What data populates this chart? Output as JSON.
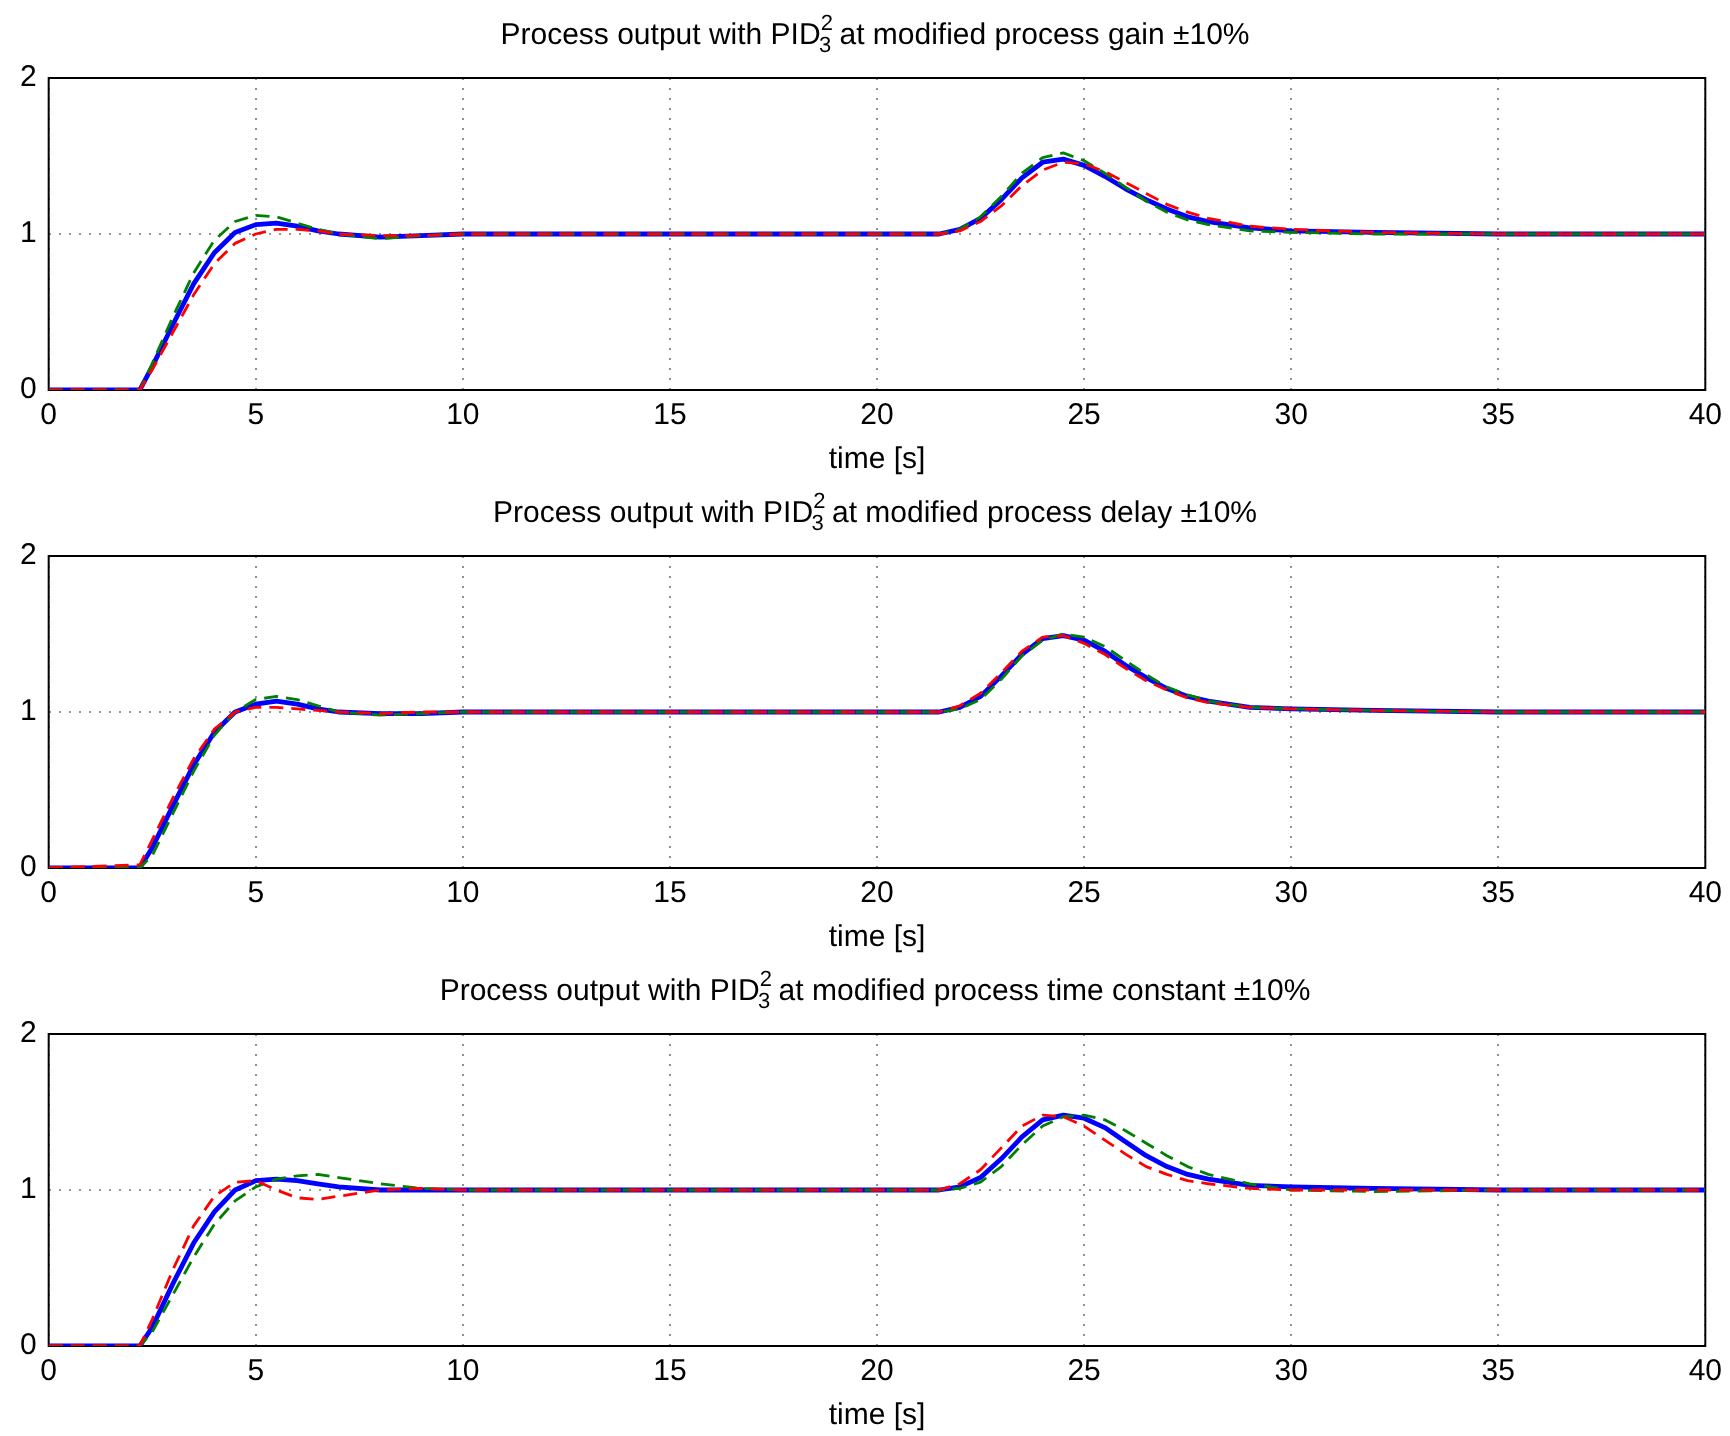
{
  "chart_data": [
    {
      "type": "line",
      "title": "Process output with PID$^{2}$$_{3}$ at modified process gain ±10%",
      "xlabel": "time [s]",
      "x": [
        0,
        2.2,
        2.5,
        3,
        3.5,
        4,
        4.5,
        5,
        5.5,
        6,
        6.5,
        7,
        8,
        9,
        10,
        15,
        20,
        21.5,
        22,
        22.5,
        23,
        23.5,
        24,
        24.5,
        25,
        25.5,
        26,
        26.5,
        27,
        27.5,
        28,
        29,
        30,
        32,
        35,
        40
      ],
      "series": [
        {
          "color": "#ff0000",
          "line_style": "dashed",
          "values": [
            0,
            0,
            0.13,
            0.37,
            0.61,
            0.81,
            0.94,
            1.0,
            1.03,
            1.03,
            1.02,
            1.0,
            0.99,
            0.99,
            1,
            1,
            1,
            1,
            1.02,
            1.08,
            1.18,
            1.31,
            1.41,
            1.46,
            1.45,
            1.4,
            1.33,
            1.26,
            1.19,
            1.14,
            1.1,
            1.05,
            1.03,
            1.01,
            1,
            1
          ]
        },
        {
          "color": "#008000",
          "line_style": "dashed",
          "values": [
            0,
            0,
            0.17,
            0.47,
            0.75,
            0.96,
            1.08,
            1.12,
            1.11,
            1.07,
            1.03,
            1.0,
            0.97,
            0.99,
            1,
            1,
            1,
            1,
            1.03,
            1.11,
            1.24,
            1.39,
            1.49,
            1.52,
            1.47,
            1.39,
            1.3,
            1.21,
            1.14,
            1.09,
            1.06,
            1.02,
            1.01,
            1,
            1,
            1
          ]
        },
        {
          "color": "#0000ff",
          "line_style": "solid",
          "values": [
            0,
            0,
            0.15,
            0.42,
            0.68,
            0.88,
            1.01,
            1.06,
            1.07,
            1.05,
            1.02,
            1.0,
            0.98,
            0.99,
            1,
            1,
            1,
            1,
            1.03,
            1.1,
            1.22,
            1.36,
            1.46,
            1.48,
            1.44,
            1.37,
            1.29,
            1.22,
            1.16,
            1.11,
            1.08,
            1.04,
            1.02,
            1.01,
            1,
            1
          ]
        }
      ],
      "xlim": [
        0,
        40
      ],
      "xticks": [
        0,
        5,
        10,
        15,
        20,
        25,
        30,
        35,
        40
      ],
      "ylim": [
        0,
        2
      ],
      "yticks": [
        0,
        1,
        2
      ],
      "grid": true,
      "marker": "none",
      "legend": false
    },
    {
      "type": "line",
      "title": "Process output with PID$^{2}$$_{3}$ at modified process delay ±10%",
      "xlabel": "time [s]",
      "x": [
        0,
        2.2,
        2.5,
        3,
        3.5,
        4,
        4.5,
        5,
        5.5,
        6,
        6.5,
        7,
        8,
        9,
        10,
        15,
        20,
        21.5,
        22,
        22.5,
        23,
        23.5,
        24,
        24.5,
        25,
        25.5,
        26,
        26.5,
        27,
        27.5,
        28,
        29,
        30,
        32,
        35,
        40
      ],
      "series": [
        {
          "color": "#ff0000",
          "line_style": "dashed",
          "values": [
            0,
            0.02,
            0.18,
            0.45,
            0.7,
            0.89,
            1.0,
            1.03,
            1.03,
            1.02,
            1.01,
            1.0,
            0.99,
            1,
            1,
            1,
            1,
            1,
            1.04,
            1.12,
            1.25,
            1.39,
            1.48,
            1.49,
            1.44,
            1.37,
            1.28,
            1.2,
            1.14,
            1.09,
            1.06,
            1.03,
            1.02,
            1.01,
            1,
            1
          ]
        },
        {
          "color": "#008000",
          "line_style": "dashed",
          "values": [
            0,
            0,
            0.08,
            0.35,
            0.62,
            0.85,
            1.0,
            1.08,
            1.1,
            1.08,
            1.04,
            1.0,
            0.98,
            0.99,
            1,
            1,
            1,
            1,
            1.02,
            1.08,
            1.21,
            1.36,
            1.46,
            1.5,
            1.48,
            1.42,
            1.33,
            1.24,
            1.16,
            1.11,
            1.07,
            1.03,
            1.02,
            1.01,
            1,
            1
          ]
        },
        {
          "color": "#0000ff",
          "line_style": "solid",
          "values": [
            0,
            0,
            0.13,
            0.4,
            0.66,
            0.87,
            1.0,
            1.05,
            1.07,
            1.05,
            1.02,
            1.0,
            0.99,
            0.99,
            1,
            1,
            1,
            1,
            1.03,
            1.1,
            1.23,
            1.37,
            1.47,
            1.49,
            1.46,
            1.39,
            1.3,
            1.22,
            1.15,
            1.1,
            1.07,
            1.03,
            1.02,
            1.01,
            1,
            1
          ]
        }
      ],
      "xlim": [
        0,
        40
      ],
      "xticks": [
        0,
        5,
        10,
        15,
        20,
        25,
        30,
        35,
        40
      ],
      "ylim": [
        0,
        2
      ],
      "yticks": [
        0,
        1,
        2
      ],
      "grid": true,
      "marker": "none",
      "legend": false
    },
    {
      "type": "line",
      "title": "Process output with PID$^{2}$$_{3}$ at modified process time constant ±10%",
      "xlabel": "time [s]",
      "x": [
        0,
        2.2,
        2.5,
        3,
        3.5,
        4,
        4.5,
        5,
        5.5,
        6,
        6.5,
        7,
        8,
        9,
        10,
        15,
        20,
        21.5,
        22,
        22.5,
        23,
        23.5,
        24,
        24.5,
        25,
        25.5,
        26,
        26.5,
        27,
        27.5,
        28,
        29,
        30,
        32,
        35,
        40
      ],
      "series": [
        {
          "color": "#ff0000",
          "line_style": "dashed",
          "values": [
            0,
            0,
            0.17,
            0.49,
            0.77,
            0.96,
            1.05,
            1.06,
            1.0,
            0.95,
            0.94,
            0.96,
            1.0,
            1.01,
            1,
            1,
            1,
            1,
            1.04,
            1.13,
            1.27,
            1.41,
            1.48,
            1.47,
            1.41,
            1.32,
            1.23,
            1.15,
            1.1,
            1.06,
            1.04,
            1.01,
            1.0,
            1.0,
            1,
            1
          ]
        },
        {
          "color": "#008000",
          "line_style": "dashed",
          "values": [
            0,
            0,
            0.09,
            0.33,
            0.57,
            0.78,
            0.93,
            1.02,
            1.07,
            1.09,
            1.1,
            1.08,
            1.04,
            1.01,
            1,
            1,
            1,
            1,
            1.01,
            1.05,
            1.15,
            1.29,
            1.41,
            1.47,
            1.48,
            1.45,
            1.38,
            1.3,
            1.22,
            1.15,
            1.1,
            1.04,
            1.0,
            0.99,
            1,
            1
          ]
        },
        {
          "color": "#0000ff",
          "line_style": "solid",
          "values": [
            0,
            0,
            0.12,
            0.4,
            0.66,
            0.86,
            1.0,
            1.06,
            1.07,
            1.06,
            1.04,
            1.02,
            1.0,
            1.0,
            1,
            1,
            1,
            1,
            1.02,
            1.08,
            1.2,
            1.34,
            1.45,
            1.48,
            1.46,
            1.4,
            1.31,
            1.22,
            1.15,
            1.1,
            1.07,
            1.03,
            1.02,
            1.01,
            1,
            1
          ]
        }
      ],
      "xlim": [
        0,
        40
      ],
      "xticks": [
        0,
        5,
        10,
        15,
        20,
        25,
        30,
        35,
        40
      ],
      "ylim": [
        0,
        2
      ],
      "yticks": [
        0,
        1,
        2
      ],
      "grid": true,
      "marker": "none",
      "legend": false
    }
  ]
}
